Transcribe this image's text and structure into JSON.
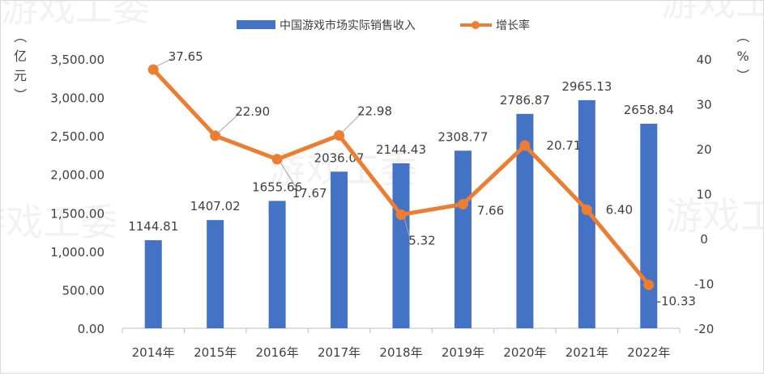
{
  "watermark": "游戏工委",
  "chart_data": {
    "type": "bar+line",
    "categories": [
      "2014年",
      "2015年",
      "2016年",
      "2017年",
      "2018年",
      "2019年",
      "2020年",
      "2021年",
      "2022年"
    ],
    "series": [
      {
        "name": "中国游戏市场实际销售收入",
        "type": "bar",
        "axis": "left",
        "values": [
          1144.81,
          1407.02,
          1655.66,
          2036.07,
          2144.43,
          2308.77,
          2786.87,
          2965.13,
          2658.84
        ],
        "labels": [
          "1144.81",
          "1407.02",
          "1655.66",
          "2036.07",
          "2144.43",
          "2308.77",
          "2786.87",
          "2965.13",
          "2658.84"
        ],
        "color": "#4472c4"
      },
      {
        "name": "增长率",
        "type": "line",
        "axis": "right",
        "values": [
          37.65,
          22.9,
          17.67,
          22.98,
          5.32,
          7.66,
          20.71,
          6.4,
          -10.33
        ],
        "labels": [
          "37.65",
          "22.90",
          "17.67",
          "22.98",
          "5.32",
          "7.66",
          "20.71",
          "6.40",
          "-10.33"
        ],
        "color": "#ed7d31"
      }
    ],
    "y_left": {
      "label": "（亿元）",
      "min": 0,
      "max": 3500,
      "step": 500,
      "ticks": [
        "0.00",
        "500.00",
        "1,000.00",
        "1,500.00",
        "2,000.00",
        "2,500.00",
        "3,000.00",
        "3,500.00"
      ]
    },
    "y_right": {
      "label": "（%）",
      "min": -20,
      "max": 40,
      "step": 10,
      "ticks": [
        "-20",
        "-10",
        "0",
        "10",
        "20",
        "30",
        "40"
      ]
    },
    "legend_position": "top-center",
    "grid": false
  }
}
